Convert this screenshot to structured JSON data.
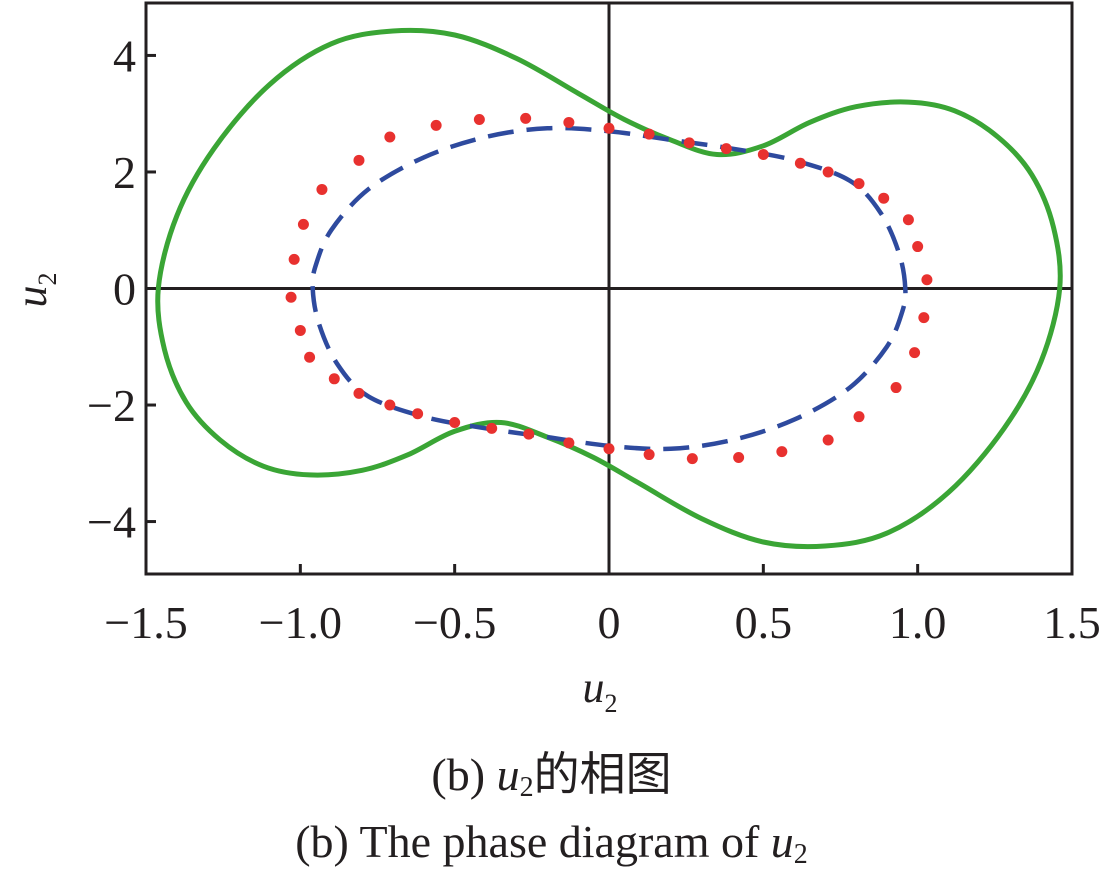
{
  "chart_data": {
    "type": "line",
    "xlabel": "u",
    "xlabel_sub": "2",
    "ylabel": "u",
    "ylabel_sub": "2",
    "ylabel_dot": "˙",
    "xlim": [
      -1.5,
      1.5
    ],
    "ylim": [
      -4.9,
      4.9
    ],
    "x_ticks": [
      -1.5,
      -1.0,
      -0.5,
      0,
      0.5,
      1.0,
      1.5
    ],
    "x_tick_labels": [
      "−1.5",
      "−1.0",
      "−0.5",
      "0",
      "0.5",
      "1.0",
      "1.5"
    ],
    "y_ticks": [
      -4,
      -2,
      0,
      2,
      4
    ],
    "y_tick_labels": [
      "−4",
      "−2",
      "0",
      "2",
      "4"
    ],
    "grid": false,
    "reference_lines": {
      "x": 0,
      "y": 0
    },
    "series": [
      {
        "style": "solid",
        "color": "#3aa535",
        "points": [
          [
            1.46,
            0.0
          ],
          [
            1.44,
            1.05
          ],
          [
            1.37,
            1.95
          ],
          [
            1.26,
            2.6
          ],
          [
            1.12,
            3.05
          ],
          [
            0.97,
            3.2
          ],
          [
            0.8,
            3.12
          ],
          [
            0.65,
            2.85
          ],
          [
            0.5,
            2.45
          ],
          [
            0.35,
            2.3
          ],
          [
            0.2,
            2.55
          ],
          [
            0.05,
            2.9
          ],
          [
            -0.1,
            3.35
          ],
          [
            -0.3,
            3.95
          ],
          [
            -0.5,
            4.35
          ],
          [
            -0.7,
            4.42
          ],
          [
            -0.9,
            4.2
          ],
          [
            -1.1,
            3.5
          ],
          [
            -1.28,
            2.4
          ],
          [
            -1.4,
            1.25
          ],
          [
            -1.46,
            0.0
          ],
          [
            -1.44,
            -1.05
          ],
          [
            -1.37,
            -1.95
          ],
          [
            -1.26,
            -2.6
          ],
          [
            -1.12,
            -3.05
          ],
          [
            -0.97,
            -3.2
          ],
          [
            -0.8,
            -3.12
          ],
          [
            -0.65,
            -2.85
          ],
          [
            -0.5,
            -2.45
          ],
          [
            -0.35,
            -2.3
          ],
          [
            -0.2,
            -2.55
          ],
          [
            -0.05,
            -2.9
          ],
          [
            0.1,
            -3.35
          ],
          [
            0.3,
            -3.95
          ],
          [
            0.5,
            -4.35
          ],
          [
            0.7,
            -4.42
          ],
          [
            0.9,
            -4.2
          ],
          [
            1.1,
            -3.5
          ],
          [
            1.28,
            -2.4
          ],
          [
            1.4,
            -1.25
          ]
        ]
      },
      {
        "style": "dashed",
        "color": "#2e4a9e",
        "points": [
          [
            0.96,
            0.0
          ],
          [
            0.94,
            0.6
          ],
          [
            0.88,
            1.3
          ],
          [
            0.78,
            1.85
          ],
          [
            0.6,
            2.2
          ],
          [
            0.4,
            2.4
          ],
          [
            0.2,
            2.55
          ],
          [
            0.0,
            2.7
          ],
          [
            -0.2,
            2.75
          ],
          [
            -0.4,
            2.6
          ],
          [
            -0.6,
            2.25
          ],
          [
            -0.78,
            1.7
          ],
          [
            -0.9,
            1.0
          ],
          [
            -0.95,
            0.4
          ],
          [
            -0.96,
            0.0
          ],
          [
            -0.94,
            -0.6
          ],
          [
            -0.88,
            -1.3
          ],
          [
            -0.78,
            -1.85
          ],
          [
            -0.6,
            -2.2
          ],
          [
            -0.4,
            -2.4
          ],
          [
            -0.2,
            -2.55
          ],
          [
            0.0,
            -2.7
          ],
          [
            0.2,
            -2.75
          ],
          [
            0.4,
            -2.6
          ],
          [
            0.6,
            -2.25
          ],
          [
            0.78,
            -1.7
          ],
          [
            0.9,
            -1.0
          ],
          [
            0.95,
            -0.4
          ]
        ]
      },
      {
        "style": "dotted",
        "color": "#e8312f",
        "points": [
          [
            1.03,
            0.15
          ],
          [
            1.02,
            -0.5
          ],
          [
            1.0,
            0.72
          ],
          [
            0.99,
            -1.1
          ],
          [
            0.97,
            1.18
          ],
          [
            0.93,
            -1.7
          ],
          [
            0.89,
            1.55
          ],
          [
            0.81,
            -2.2
          ],
          [
            0.81,
            1.8
          ],
          [
            0.71,
            -2.6
          ],
          [
            0.71,
            2.0
          ],
          [
            0.62,
            2.15
          ],
          [
            0.56,
            -2.8
          ],
          [
            0.5,
            2.3
          ],
          [
            0.42,
            -2.9
          ],
          [
            0.38,
            2.4
          ],
          [
            0.27,
            -2.92
          ],
          [
            0.26,
            2.5
          ],
          [
            0.13,
            -2.85
          ],
          [
            0.13,
            2.65
          ],
          [
            0.0,
            -2.75
          ],
          [
            0.0,
            2.75
          ],
          [
            -0.13,
            -2.65
          ],
          [
            -0.13,
            2.85
          ],
          [
            -0.26,
            -2.5
          ],
          [
            -0.27,
            2.92
          ],
          [
            -0.38,
            -2.4
          ],
          [
            -0.42,
            2.9
          ],
          [
            -0.5,
            -2.3
          ],
          [
            -0.56,
            2.8
          ],
          [
            -0.62,
            -2.15
          ],
          [
            -0.71,
            -2.0
          ],
          [
            -0.71,
            2.6
          ],
          [
            -0.81,
            -1.8
          ],
          [
            -0.81,
            2.2
          ],
          [
            -0.89,
            -1.55
          ],
          [
            -0.93,
            1.7
          ],
          [
            -0.97,
            -1.18
          ],
          [
            -0.99,
            1.1
          ],
          [
            -1.0,
            -0.72
          ],
          [
            -1.02,
            0.5
          ],
          [
            -1.03,
            -0.15
          ]
        ]
      }
    ]
  },
  "caption": {
    "cn_prefix": "(b) ",
    "cn_var": "u",
    "cn_sub": "2",
    "cn_suffix": "的相图",
    "en_prefix": "(b) The phase diagram of ",
    "en_var": "u",
    "en_sub": "2"
  }
}
